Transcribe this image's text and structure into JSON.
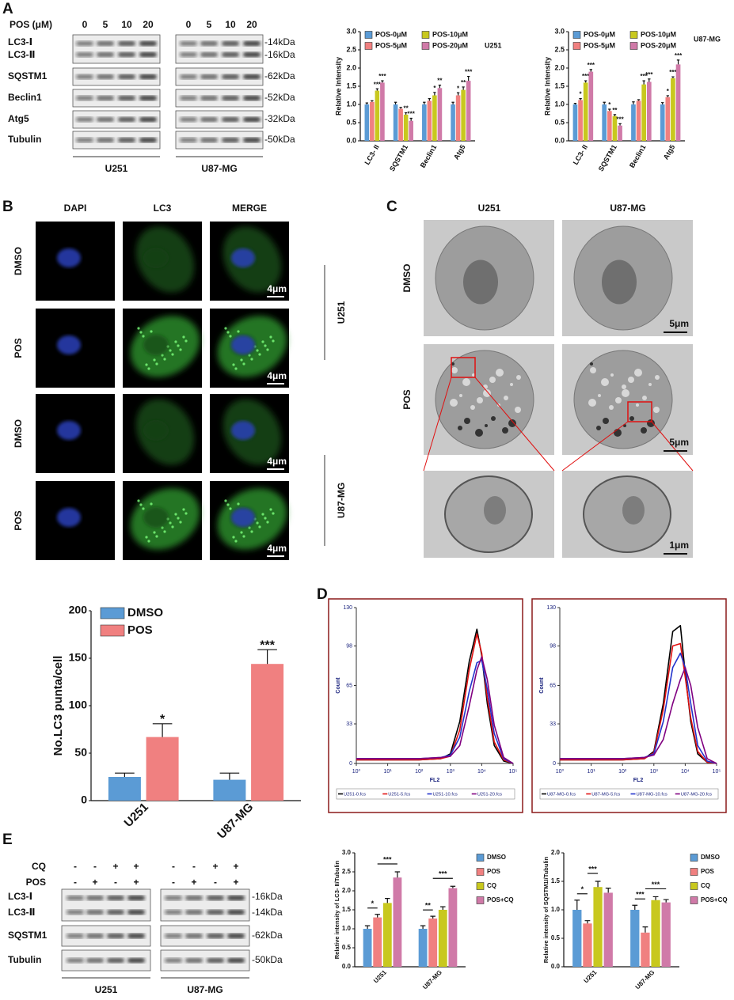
{
  "figure": {
    "panels": [
      "A",
      "B",
      "C",
      "D",
      "E"
    ],
    "blot_a": {
      "header": "POS (μM)",
      "lanes": [
        "0",
        "5",
        "10",
        "20",
        "0",
        "5",
        "10",
        "20"
      ],
      "rows": [
        "LC3-Ⅰ",
        "LC3-Ⅱ",
        "SQSTM1",
        "Beclin1",
        "Atg5",
        "Tubulin"
      ],
      "sizes": [
        "-14kDa",
        "-16kDa",
        "-62kDa",
        "-52kDa",
        "-32kDa",
        "-50kDa"
      ],
      "groups": [
        "U251",
        "U87-MG"
      ]
    },
    "if": {
      "columns": [
        "DAPI",
        "LC3",
        "MERGE"
      ],
      "rows": [
        "DMSO",
        "POS",
        "DMSO",
        "POS"
      ],
      "scale": "4μm",
      "groups": [
        "U251",
        "U87-MG"
      ]
    },
    "tem": {
      "columns": [
        "U251",
        "U87-MG"
      ],
      "rows": [
        "DMSO",
        "POS"
      ],
      "scales": [
        "5μm",
        "5μm",
        "1μm"
      ]
    },
    "blot_e": {
      "treatments": [
        {
          "name": "CQ",
          "signs": [
            "-",
            "-",
            "+",
            "+",
            "-",
            "-",
            "+",
            "+"
          ]
        },
        {
          "name": "POS",
          "signs": [
            "-",
            "+",
            "-",
            "+",
            "-",
            "+",
            "-",
            "+"
          ]
        }
      ],
      "rows": [
        "LC3-Ⅰ",
        "LC3-Ⅱ",
        "SQSTM1",
        "Tubulin"
      ],
      "sizes": [
        "-16kDa",
        "-14kDa",
        "-62kDa",
        "-50kDa"
      ],
      "groups": [
        "U251",
        "U87-MG"
      ]
    }
  },
  "chart_data": [
    {
      "type": "bar",
      "title": "U251",
      "ylabel": "Relative Intensity",
      "categories": [
        "LC3- II",
        "SQSTM1",
        "Beclin1",
        "Atg5"
      ],
      "ylim": [
        0,
        3
      ],
      "yticks": [
        {
          "value": 0,
          "label": "0.0"
        },
        0.5,
        {
          "value": 1,
          "label": "1.0"
        },
        1.5,
        {
          "value": 2,
          "label": "2.0"
        },
        2.5,
        {
          "value": 3,
          "label": "3.0"
        }
      ],
      "legend": "top",
      "series": [
        {
          "name": "POS-0μM",
          "color": "#5b9bd5",
          "values": [
            1.0,
            1.0,
            1.0,
            1.0
          ],
          "errors": [
            0.04,
            0.06,
            0.06,
            0.06
          ],
          "significance": [
            null,
            null,
            null,
            null
          ]
        },
        {
          "name": "POS-5μM",
          "color": "#f08080",
          "values": [
            1.07,
            0.88,
            1.1,
            1.25
          ],
          "errors": [
            0.03,
            0.04,
            0.06,
            0.07
          ],
          "significance": [
            null,
            null,
            null,
            "*"
          ]
        },
        {
          "name": "POS-10μM",
          "color": "#c8c81e",
          "values": [
            1.38,
            0.72,
            1.25,
            1.4
          ],
          "errors": [
            0.05,
            0.05,
            0.08,
            0.08
          ],
          "significance": [
            "***",
            "**",
            "*",
            "**"
          ]
        },
        {
          "name": "POS-20μM",
          "color": "#d07aa8",
          "values": [
            1.6,
            0.55,
            1.45,
            1.65
          ],
          "errors": [
            0.05,
            0.07,
            0.08,
            0.12
          ],
          "significance": [
            "***",
            "***",
            "**",
            "***"
          ]
        }
      ]
    },
    {
      "type": "bar",
      "title": "U87-MG",
      "ylabel": "Relative Intensity",
      "categories": [
        "LC3- II",
        "SQSTM1",
        "Beclin1",
        "Atg5"
      ],
      "ylim": [
        0,
        3
      ],
      "yticks": [
        {
          "value": 0,
          "label": "0.0"
        },
        0.5,
        {
          "value": 1,
          "label": "1.0"
        },
        1.5,
        {
          "value": 2,
          "label": "2.0"
        },
        2.5,
        {
          "value": 3,
          "label": "3.0"
        }
      ],
      "legend": "top",
      "series": [
        {
          "name": "POS-0μM",
          "color": "#5b9bd5",
          "values": [
            1.0,
            1.0,
            1.0,
            1.0
          ],
          "errors": [
            0.03,
            0.06,
            0.07,
            0.05
          ],
          "significance": [
            null,
            null,
            null,
            null
          ]
        },
        {
          "name": "POS-5μM",
          "color": "#f08080",
          "values": [
            1.12,
            0.82,
            1.1,
            1.2
          ],
          "errors": [
            0.04,
            0.05,
            0.03,
            0.04
          ],
          "significance": [
            "*",
            "*",
            null,
            "*"
          ]
        },
        {
          "name": "POS-10μM",
          "color": "#c8c81e",
          "values": [
            1.6,
            0.68,
            1.55,
            1.72
          ],
          "errors": [
            0.05,
            0.04,
            0.1,
            0.04
          ],
          "significance": [
            "***",
            "**",
            "***",
            "***"
          ]
        },
        {
          "name": "POS-20μM",
          "color": "#d07aa8",
          "values": [
            1.9,
            0.42,
            1.62,
            2.1
          ],
          "errors": [
            0.06,
            0.05,
            0.08,
            0.12
          ],
          "significance": [
            "***",
            "***",
            "***",
            "***"
          ]
        }
      ]
    },
    {
      "type": "bar",
      "ylabel": "No.LC3 punta/cell",
      "categories": [
        "U251",
        "U87-MG"
      ],
      "ylim": [
        0,
        200
      ],
      "yticks": [
        0,
        50,
        100,
        150,
        200
      ],
      "legend": "top-left",
      "series": [
        {
          "name": "DMSO",
          "color": "#5b9bd5",
          "values": [
            25,
            22
          ],
          "errors": [
            4,
            7
          ],
          "significance": [
            null,
            null
          ]
        },
        {
          "name": "POS",
          "color": "#f08080",
          "values": [
            67,
            144
          ],
          "errors": [
            14,
            15
          ],
          "significance": [
            "*",
            "***"
          ]
        }
      ]
    },
    {
      "type": "line",
      "ylabel": "Count",
      "xlabel": "FL2",
      "xlog": true,
      "xlim": [
        1,
        100000
      ],
      "xticks": [
        {
          "value": 1,
          "label": "10⁰"
        },
        {
          "value": 10,
          "label": "10¹"
        },
        {
          "value": 100,
          "label": "10²"
        },
        {
          "value": 1000,
          "label": "10³"
        },
        {
          "value": 10000,
          "label": "10⁴"
        },
        {
          "value": 100000,
          "label": "10⁵"
        }
      ],
      "ylim": [
        0,
        130
      ],
      "yticks": [
        0,
        33,
        65,
        98,
        130
      ],
      "x": [
        1,
        10,
        100,
        500,
        1000,
        2000,
        4000,
        7000,
        10000,
        15000,
        25000,
        50000,
        100000
      ],
      "series": [
        {
          "name": "U251-0.fcs",
          "color": "#000000",
          "values": [
            3,
            3,
            3,
            4,
            8,
            35,
            85,
            112,
            90,
            50,
            15,
            2,
            0
          ]
        },
        {
          "name": "U251-5.fcs",
          "color": "#e01010",
          "values": [
            3,
            3,
            3,
            4,
            6,
            28,
            78,
            108,
            92,
            55,
            18,
            3,
            0
          ]
        },
        {
          "name": "U251-10.fcs",
          "color": "#2233cc",
          "values": [
            4,
            4,
            4,
            5,
            7,
            22,
            60,
            84,
            86,
            62,
            25,
            4,
            0
          ]
        },
        {
          "name": "U251-20.fcs",
          "color": "#800080",
          "values": [
            4,
            4,
            4,
            5,
            6,
            15,
            48,
            78,
            89,
            70,
            32,
            5,
            0
          ]
        }
      ]
    },
    {
      "type": "line",
      "ylabel": "Count",
      "xlabel": "FL2",
      "xlog": true,
      "xlim": [
        1,
        100000
      ],
      "xticks": [
        {
          "value": 1,
          "label": "10⁰"
        },
        {
          "value": 10,
          "label": "10¹"
        },
        {
          "value": 100,
          "label": "10²"
        },
        {
          "value": 1000,
          "label": "10³"
        },
        {
          "value": 10000,
          "label": "10⁴"
        },
        {
          "value": 100000,
          "label": "10⁵"
        }
      ],
      "ylim": [
        0,
        130
      ],
      "yticks": [
        0,
        33,
        65,
        98,
        130
      ],
      "x": [
        1,
        10,
        100,
        500,
        1000,
        2000,
        4000,
        7000,
        10000,
        15000,
        25000,
        50000,
        100000
      ],
      "series": [
        {
          "name": "U87-MG-0.fcs",
          "color": "#000000",
          "values": [
            3,
            3,
            3,
            4,
            10,
            50,
            110,
            115,
            75,
            35,
            8,
            1,
            0
          ]
        },
        {
          "name": "U87-MG-5.fcs",
          "color": "#e01010",
          "values": [
            3,
            3,
            3,
            4,
            9,
            45,
            98,
            100,
            72,
            38,
            10,
            1,
            0
          ]
        },
        {
          "name": "U87-MG-10.fcs",
          "color": "#2233cc",
          "values": [
            4,
            4,
            4,
            5,
            8,
            35,
            80,
            92,
            80,
            50,
            15,
            2,
            0
          ]
        },
        {
          "name": "U87-MG-20.fcs",
          "color": "#800080",
          "values": [
            4,
            4,
            4,
            5,
            7,
            20,
            50,
            70,
            80,
            65,
            30,
            4,
            0
          ]
        }
      ]
    },
    {
      "type": "bar",
      "ylabel": "Relative intensity of LC3- II/Tubulin",
      "categories": [
        "U251",
        "U87-MG"
      ],
      "ylim": [
        0,
        3
      ],
      "yticks": [
        {
          "value": 0,
          "label": "0.0"
        },
        0.5,
        {
          "value": 1,
          "label": "1.0"
        },
        1.5,
        {
          "value": 2,
          "label": "2.0"
        },
        2.5,
        {
          "value": 3,
          "label": "3.0"
        }
      ],
      "legend": "right",
      "series": [
        {
          "name": "DMSO",
          "color": "#5b9bd5",
          "values": [
            1.0,
            1.0
          ],
          "errors": [
            0.08,
            0.08
          ]
        },
        {
          "name": "POS",
          "color": "#f08080",
          "values": [
            1.3,
            1.27
          ],
          "errors": [
            0.08,
            0.06
          ]
        },
        {
          "name": "CQ",
          "color": "#c8c81e",
          "values": [
            1.68,
            1.5
          ],
          "errors": [
            0.12,
            0.08
          ]
        },
        {
          "name": "POS+CQ",
          "color": "#d07aa8",
          "values": [
            2.35,
            2.07
          ],
          "errors": [
            0.15,
            0.05
          ]
        }
      ],
      "brackets": [
        [
          {
            "label": "*",
            "between": [
              "DMSO",
              "POS"
            ]
          },
          {
            "label": "***",
            "between": [
              "POS",
              "POS+CQ"
            ]
          }
        ],
        [
          {
            "label": "**",
            "between": [
              "DMSO",
              "POS"
            ]
          },
          {
            "label": "***",
            "between": [
              "POS",
              "POS+CQ"
            ]
          }
        ]
      ]
    },
    {
      "type": "bar",
      "ylabel": "Relative intensity of SQSTM1I/Tubulin",
      "categories": [
        "U251",
        "U87-MG"
      ],
      "ylim": [
        0,
        2
      ],
      "yticks": [
        {
          "value": 0,
          "label": "0.0"
        },
        0.5,
        {
          "value": 1,
          "label": "1.0"
        },
        1.5,
        {
          "value": 2,
          "label": "2.0"
        }
      ],
      "legend": "right",
      "series": [
        {
          "name": "DMSO",
          "color": "#5b9bd5",
          "values": [
            1.0,
            1.0
          ],
          "errors": [
            0.17,
            0.08
          ]
        },
        {
          "name": "POS",
          "color": "#f08080",
          "values": [
            0.76,
            0.6
          ],
          "errors": [
            0.05,
            0.1
          ]
        },
        {
          "name": "CQ",
          "color": "#c8c81e",
          "values": [
            1.4,
            1.17
          ],
          "errors": [
            0.1,
            0.06
          ]
        },
        {
          "name": "POS+CQ",
          "color": "#d07aa8",
          "values": [
            1.3,
            1.13
          ],
          "errors": [
            0.08,
            0.05
          ]
        }
      ],
      "brackets": [
        [
          {
            "label": "*",
            "between": [
              "DMSO",
              "POS"
            ]
          },
          {
            "label": "***",
            "between": [
              "POS",
              "CQ"
            ]
          }
        ],
        [
          {
            "label": "***",
            "between": [
              "DMSO",
              "POS"
            ]
          },
          {
            "label": "***",
            "between": [
              "POS",
              "POS+CQ"
            ]
          }
        ]
      ]
    }
  ]
}
